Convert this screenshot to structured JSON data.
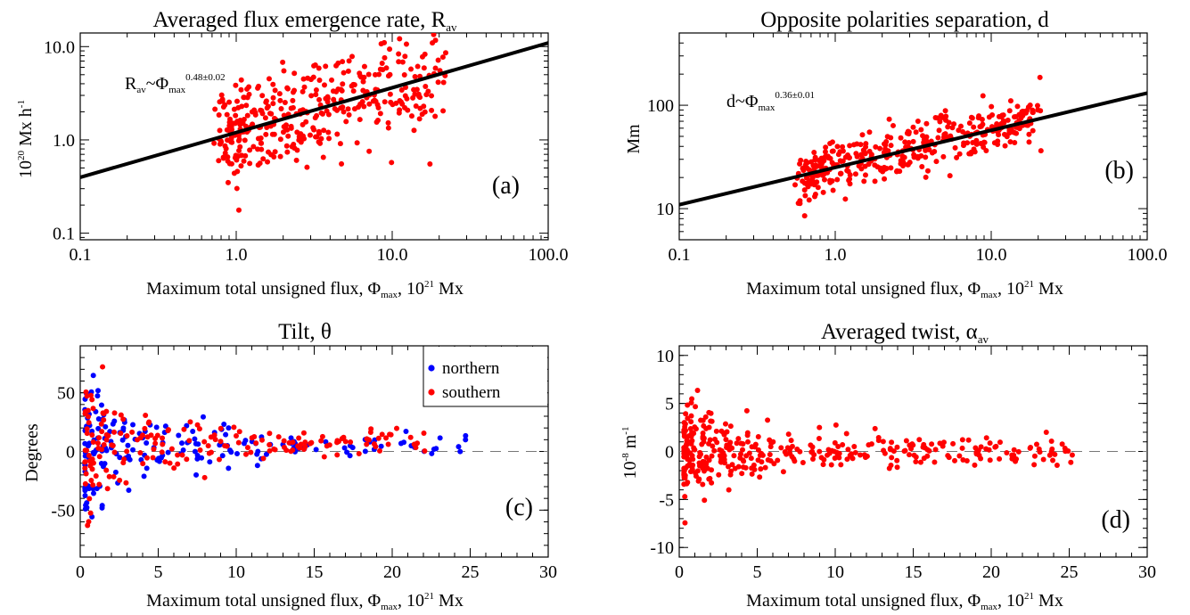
{
  "chart_data": [
    {
      "type": "scatter",
      "title": "Averaged flux emergence rate, R",
      "title_sub": "av",
      "xlabel": {
        "pre": "Maximum total unsigned flux, Φ",
        "sub": "max",
        "mid": ", 10",
        "sup": "21",
        "post": " Mx"
      },
      "ylabel": {
        "pre": "10",
        "sup": "20",
        "post": " Mx h",
        "sup2": "-1"
      },
      "xscale": "log",
      "yscale": "log",
      "xlim": [
        0.1,
        100
      ],
      "ylim": [
        0.085,
        14
      ],
      "xticks": [
        0.1,
        1,
        10,
        100
      ],
      "xticklabels": [
        "0.1",
        "1.0",
        "10.0",
        "100.0"
      ],
      "yticks": [
        0.1,
        1,
        10
      ],
      "yticklabels": [
        "0.1",
        "1.0",
        "10.0"
      ],
      "annotation": {
        "a": "R",
        "a_sub": "av",
        "b": "~Φ",
        "b_sub": "max",
        "b_sup": "0.48±0.02"
      },
      "panel_label": "(a)",
      "fit": {
        "a": 1.2,
        "exp": 0.48
      },
      "scatter": {
        "color": "#ff0000",
        "n": 380,
        "seed": 11,
        "xmin": 0.45,
        "xmax": 25,
        "a": 1.2,
        "exp": 0.48,
        "sigma": 0.62
      }
    },
    {
      "type": "scatter",
      "title": "Opposite polarities separation, d",
      "xlabel": {
        "pre": "Maximum total unsigned flux, Φ",
        "sub": "max",
        "mid": ", 10",
        "sup": "21",
        "post": " Mx"
      },
      "ylabel": {
        "pre": "Mm"
      },
      "xscale": "log",
      "yscale": "log",
      "xlim": [
        0.1,
        100
      ],
      "ylim": [
        5,
        500
      ],
      "xticks": [
        0.1,
        1,
        10,
        100
      ],
      "xticklabels": [
        "0.1",
        "1.0",
        "10.0",
        "100.0"
      ],
      "yticks": [
        10,
        100
      ],
      "yticklabels": [
        "10",
        "100"
      ],
      "annotation": {
        "a": "d",
        "b": "~Φ",
        "b_sub": "max",
        "b_sup": "0.36±0.01"
      },
      "panel_label": "(b)",
      "fit": {
        "a": 25,
        "exp": 0.36
      },
      "scatter": {
        "color": "#ff0000",
        "n": 380,
        "seed": 23,
        "xmin": 0.35,
        "xmax": 25,
        "a": 25,
        "exp": 0.36,
        "sigma": 0.28
      }
    },
    {
      "type": "scatter",
      "title": "Tilt, θ",
      "xlabel": {
        "pre": "Maximum total unsigned flux, Φ",
        "sub": "max",
        "mid": ", 10",
        "sup": "21",
        "post": " Mx"
      },
      "ylabel": {
        "pre": "Degrees"
      },
      "xscale": "linear",
      "yscale": "linear",
      "xlim": [
        0,
        30
      ],
      "ylim": [
        -90,
        90
      ],
      "xticks": [
        0,
        5,
        10,
        15,
        20,
        25,
        30
      ],
      "xticklabels": [
        "0",
        "5",
        "10",
        "15",
        "20",
        "25",
        "30"
      ],
      "yticks": [
        -50,
        0,
        50
      ],
      "yticklabels": [
        "-50",
        "0",
        "50"
      ],
      "panel_label": "(c)",
      "zero_line": true,
      "legend": [
        {
          "name": "northern",
          "color": "#0000ff"
        },
        {
          "name": "southern",
          "color": "#ff0000"
        }
      ],
      "series": [
        {
          "name": "northern",
          "color": "#0000ff",
          "n": 190,
          "seed": 5,
          "xmax": 25.2,
          "base": 6,
          "spread": 55,
          "decay": 0.28,
          "floor": 5
        },
        {
          "name": "southern",
          "color": "#ff0000",
          "n": 190,
          "seed": 9,
          "xmax": 22.5,
          "base": 8,
          "spread": 60,
          "decay": 0.3,
          "floor": 6
        }
      ]
    },
    {
      "type": "scatter",
      "title": "Averaged twist, α",
      "title_sub": "av",
      "xlabel": {
        "pre": "Maximum total unsigned flux, Φ",
        "sub": "max",
        "mid": ", 10",
        "sup": "21",
        "post": " Mx"
      },
      "ylabel": {
        "pre": "10",
        "sup": "-8",
        "post": " m",
        "sup2": "-1"
      },
      "xscale": "linear",
      "yscale": "linear",
      "xlim": [
        0,
        30
      ],
      "ylim": [
        -11,
        11
      ],
      "xticks": [
        0,
        5,
        10,
        15,
        20,
        25,
        30
      ],
      "xticklabels": [
        "0",
        "5",
        "10",
        "15",
        "20",
        "25",
        "30"
      ],
      "yticks": [
        -10,
        -5,
        0,
        5,
        10
      ],
      "yticklabels": [
        "-10",
        "-5",
        "0",
        "5",
        "10"
      ],
      "panel_label": "(d)",
      "zero_line": true,
      "series": [
        {
          "name": "",
          "color": "#ff0000",
          "n": 380,
          "seed": 31,
          "xmax": 25.3,
          "base": 0,
          "spread": 3.6,
          "decay": 0.25,
          "floor": 0.8
        }
      ]
    }
  ]
}
